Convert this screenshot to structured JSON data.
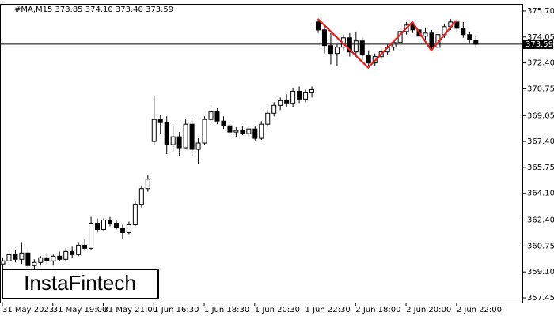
{
  "chart_data": {
    "type": "candlestick",
    "title": "#MA,M15  373.85 374.10 373.40 373.59",
    "categories": [
      "31 May 2023",
      null,
      null,
      null,
      null,
      null,
      null,
      null,
      "31 May 19:00",
      null,
      null,
      null,
      null,
      null,
      null,
      null,
      "31 May 21:00",
      null,
      null,
      null,
      null,
      null,
      null,
      null,
      "1 Jun 16:30",
      null,
      null,
      null,
      null,
      null,
      null,
      null,
      "1 Jun 18:30",
      null,
      null,
      null,
      null,
      null,
      null,
      null,
      "1 Jun 20:30",
      null,
      null,
      null,
      null,
      null,
      null,
      null,
      "1 Jun 22:30",
      null,
      null,
      null,
      null,
      null,
      null,
      null,
      "2 Jun 18:00",
      null,
      null,
      null,
      null,
      null,
      null,
      null,
      "2 Jun 20:00",
      null,
      null,
      null,
      null,
      null,
      null,
      null,
      "2 Jun 22:00",
      null,
      null,
      null
    ],
    "open": [
      359.6,
      359.8,
      360.2,
      359.9,
      360.3,
      359.5,
      359.7,
      360.0,
      359.8,
      360.1,
      359.9,
      360.4,
      360.2,
      360.8,
      360.6,
      362.2,
      361.8,
      362.4,
      362.2,
      361.9,
      361.6,
      362.1,
      363.4,
      364.4,
      367.4,
      368.8,
      368.6,
      367.2,
      367.7,
      367.0,
      368.5,
      366.9,
      367.3,
      368.8,
      369.3,
      368.7,
      368.4,
      368.0,
      368.1,
      367.9,
      368.2,
      367.6,
      368.5,
      369.2,
      369.7,
      370.0,
      369.8,
      370.6,
      370.1,
      370.5,
      375.0,
      374.5,
      373.5,
      373.0,
      373.4,
      374.0,
      373.1,
      373.8,
      372.9,
      372.4,
      372.8,
      373.1,
      373.4,
      373.7,
      374.4,
      374.8,
      374.5,
      374.1,
      374.3,
      373.4,
      374.2,
      374.7,
      375.0,
      374.6,
      374.2,
      373.85
    ],
    "high": [
      360.0,
      360.4,
      360.5,
      361.0,
      360.6,
      359.9,
      360.1,
      360.3,
      360.2,
      360.4,
      360.6,
      360.7,
      361.0,
      361.2,
      362.6,
      362.5,
      362.5,
      362.6,
      362.4,
      362.1,
      362.3,
      363.6,
      364.6,
      365.3,
      370.3,
      369.1,
      369.0,
      368.4,
      368.0,
      368.8,
      368.8,
      367.6,
      369.0,
      369.6,
      369.5,
      369.0,
      368.6,
      368.3,
      368.4,
      368.3,
      368.4,
      368.7,
      369.4,
      369.9,
      370.2,
      370.4,
      370.8,
      370.9,
      370.7,
      370.9,
      375.2,
      374.8,
      374.3,
      373.6,
      374.2,
      374.3,
      374.4,
      374.0,
      373.2,
      373.0,
      373.3,
      373.6,
      373.9,
      374.6,
      375.0,
      375.0,
      375.0,
      374.6,
      374.5,
      374.4,
      374.9,
      375.2,
      375.1,
      375.0,
      374.4,
      374.1
    ],
    "low": [
      359.3,
      359.5,
      359.7,
      359.6,
      359.2,
      359.0,
      359.5,
      359.6,
      359.5,
      359.8,
      359.8,
      360.0,
      360.1,
      360.5,
      360.5,
      361.6,
      361.7,
      362.0,
      361.8,
      361.2,
      361.5,
      362.0,
      363.2,
      364.2,
      367.2,
      367.9,
      366.6,
      366.8,
      366.5,
      366.9,
      366.4,
      366.0,
      367.2,
      368.6,
      368.5,
      368.2,
      367.8,
      367.7,
      367.8,
      367.6,
      367.4,
      367.5,
      368.3,
      369.0,
      369.4,
      369.6,
      369.6,
      369.8,
      369.9,
      370.2,
      374.3,
      373.0,
      372.3,
      372.2,
      373.2,
      372.8,
      372.9,
      372.6,
      372.1,
      372.2,
      372.6,
      372.9,
      373.2,
      373.5,
      374.2,
      374.3,
      373.8,
      373.7,
      373.2,
      373.2,
      374.0,
      374.5,
      374.4,
      374.0,
      373.7,
      373.4
    ],
    "close": [
      359.8,
      360.2,
      359.9,
      360.3,
      359.5,
      359.7,
      360.0,
      359.8,
      360.1,
      359.9,
      360.4,
      360.2,
      360.8,
      360.6,
      362.2,
      361.8,
      362.4,
      362.2,
      361.9,
      361.6,
      362.1,
      363.4,
      364.4,
      365.0,
      368.8,
      368.6,
      367.2,
      367.7,
      367.0,
      368.5,
      366.9,
      367.3,
      368.8,
      369.3,
      368.7,
      368.4,
      368.0,
      368.1,
      367.9,
      368.2,
      367.6,
      368.5,
      369.2,
      369.7,
      370.0,
      369.8,
      370.6,
      370.1,
      370.5,
      370.7,
      374.5,
      373.5,
      373.0,
      373.4,
      374.0,
      373.1,
      373.8,
      372.9,
      372.4,
      372.8,
      373.1,
      373.4,
      373.7,
      374.4,
      374.8,
      374.5,
      374.1,
      374.3,
      373.4,
      374.2,
      374.7,
      375.0,
      374.6,
      374.2,
      373.9,
      373.59
    ],
    "up_color": "#ffffff",
    "down_color": "#000000",
    "ylim": [
      357.15,
      376.15
    ],
    "yticks": [
      {
        "value": 375.7,
        "label": "375.70"
      },
      374.05,
      {
        "value": 372.4,
        "label": "372.40"
      },
      370.75,
      369.05,
      {
        "value": 367.4,
        "label": "367.40"
      },
      365.75,
      {
        "value": 364.1,
        "label": "364.10"
      },
      {
        "value": 362.4,
        "label": "362.40"
      },
      360.75,
      {
        "value": 359.1,
        "label": "359.10"
      },
      357.45
    ],
    "current_price": 373.59,
    "pattern": {
      "color": "#e8201c",
      "x": [
        50,
        58,
        65,
        68,
        72
      ],
      "y": [
        375.2,
        372.1,
        375.0,
        373.2,
        375.1
      ]
    }
  },
  "watermark": "InstaFintech"
}
